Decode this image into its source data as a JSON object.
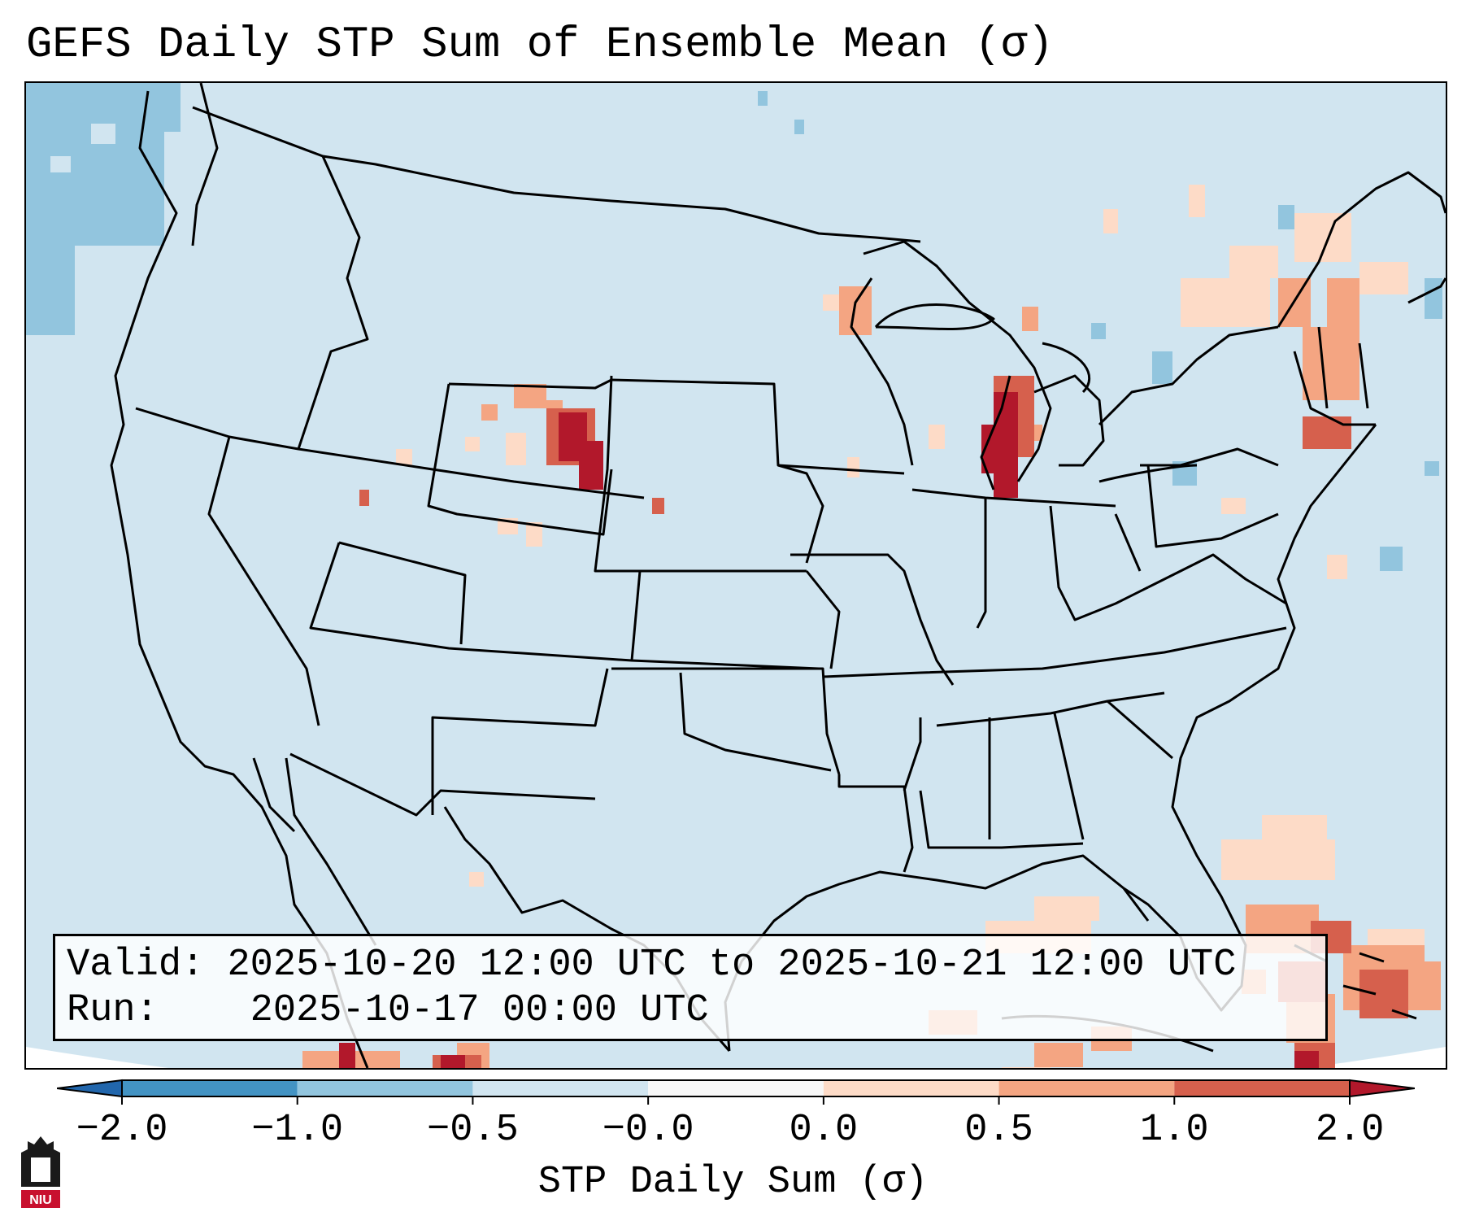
{
  "title": "GEFS Daily STP Sum of Ensemble Mean (σ)",
  "info": {
    "valid_label": "Valid:",
    "valid_value": "2025-10-20 12:00 UTC to 2025-10-21 12:00 UTC",
    "run_label": "Run:",
    "run_value": "2025-10-17 00:00 UTC"
  },
  "colorbar": {
    "label": "STP Daily Sum (σ)",
    "ticks": [
      "−2.0",
      "−1.0",
      "−0.5",
      "−0.0",
      "0.0",
      "0.5",
      "1.0",
      "2.0"
    ],
    "bins": [
      {
        "from": "-2.0",
        "to": "-1.0",
        "color": "#4393c3"
      },
      {
        "from": "-1.0",
        "to": "-0.5",
        "color": "#92c5de"
      },
      {
        "from": "-0.5",
        "to": "-0.0",
        "color": "#d1e5f0"
      },
      {
        "from": "-0.0",
        "to": "0.0",
        "color": "#f7f7f7"
      },
      {
        "from": "0.0",
        "to": "0.5",
        "color": "#fddbc7"
      },
      {
        "from": "0.5",
        "to": "1.0",
        "color": "#f4a582"
      },
      {
        "from": "1.0",
        "to": "2.0",
        "color": "#d6604d"
      }
    ],
    "extend_low_color": "#2166ac",
    "extend_high_color": "#b2182b"
  },
  "map": {
    "background_value_color": "#d1e5f0",
    "outline_color": "#000000",
    "anomaly_regions": [
      {
        "region": "Wyoming / Nebraska Panhandle",
        "max_level": "> 2.0"
      },
      {
        "region": "Western Michigan / Lake Michigan",
        "max_level": "> 2.0"
      },
      {
        "region": "Bahamas",
        "max_level": "1.0 to 2.0"
      },
      {
        "region": "Southern New England",
        "max_level": "1.0 to 2.0"
      },
      {
        "region": "Eastern Pacific off Washington",
        "max_level": "-1.0 to -0.5"
      }
    ]
  },
  "logo": {
    "text": "NIU"
  }
}
